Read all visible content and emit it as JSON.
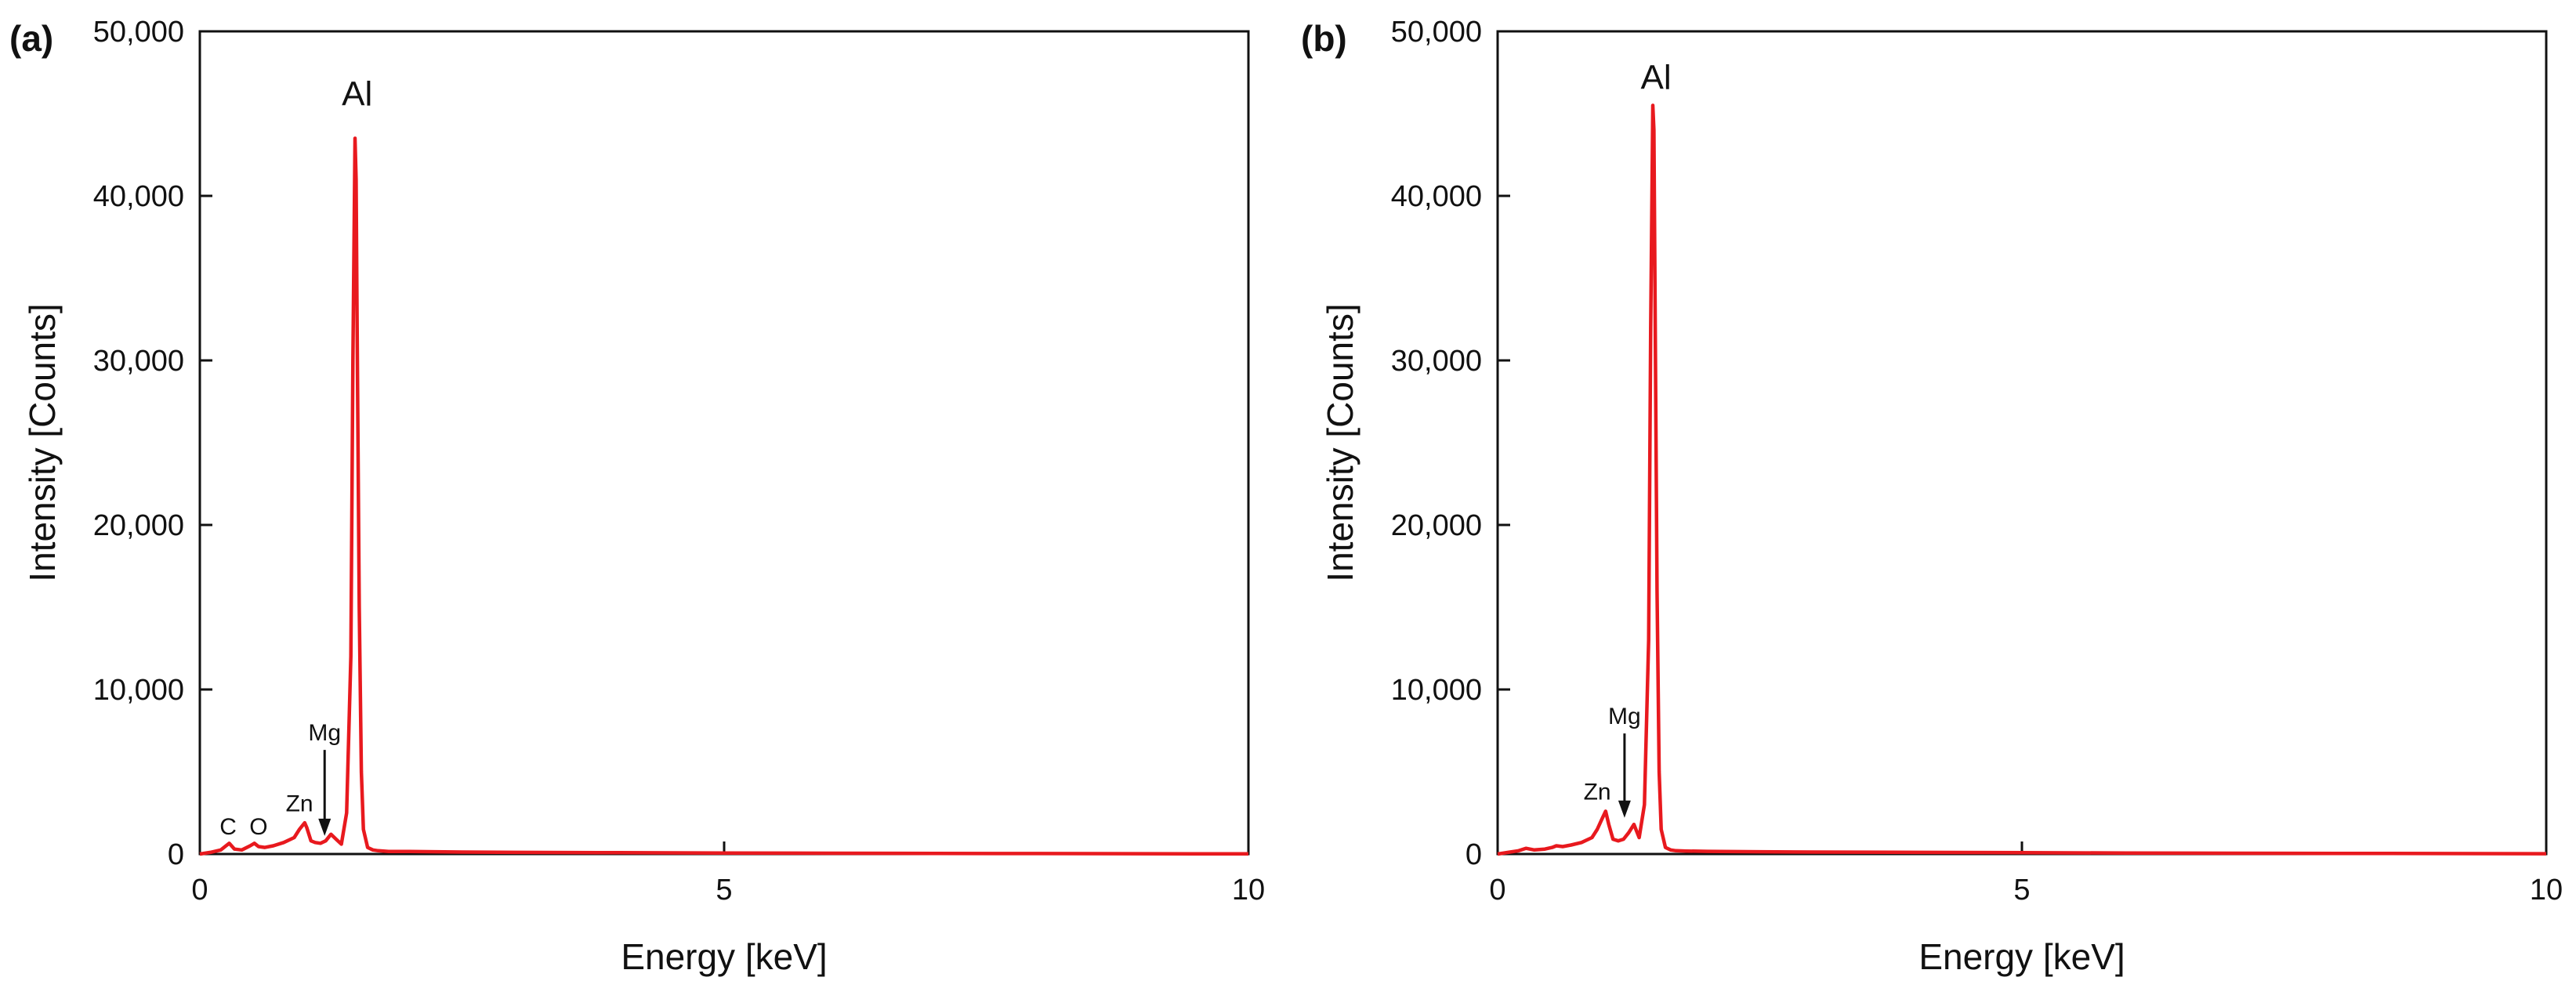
{
  "chart_data": [
    {
      "type": "line",
      "panel_label": "(a)",
      "xlabel": "Energy [keV]",
      "ylabel": "Intensity [Counts]",
      "xlim": [
        0,
        10
      ],
      "ylim": [
        0,
        50000
      ],
      "xticks": [
        0,
        5,
        10
      ],
      "xtick_labels": [
        "0",
        "5",
        "10"
      ],
      "yticks": [
        0,
        10000,
        20000,
        30000,
        40000,
        50000
      ],
      "ytick_labels": [
        "0",
        "10,000",
        "20,000",
        "30,000",
        "40,000",
        "50,000"
      ],
      "grid": false,
      "series": [
        {
          "name": "EDS spectrum (a)",
          "color": "#e8191e",
          "x": [
            0,
            0.1,
            0.2,
            0.25,
            0.28,
            0.33,
            0.4,
            0.48,
            0.52,
            0.56,
            0.62,
            0.7,
            0.8,
            0.9,
            0.95,
            1.0,
            1.02,
            1.06,
            1.1,
            1.15,
            1.2,
            1.25,
            1.3,
            1.35,
            1.4,
            1.44,
            1.46,
            1.48,
            1.49,
            1.5,
            1.52,
            1.54,
            1.56,
            1.6,
            1.65,
            1.7,
            1.8,
            2.0,
            2.5,
            3.0,
            4.0,
            5.0,
            6.0,
            7.0,
            8.0,
            9.0,
            10.0
          ],
          "y": [
            0,
            100,
            250,
            500,
            650,
            300,
            250,
            500,
            650,
            450,
            400,
            500,
            700,
            1000,
            1500,
            1900,
            1600,
            800,
            700,
            650,
            800,
            1200,
            900,
            600,
            2500,
            12000,
            30000,
            43500,
            41000,
            32000,
            15000,
            5000,
            1500,
            400,
            250,
            200,
            150,
            150,
            120,
            100,
            80,
            60,
            50,
            40,
            30,
            20,
            10
          ]
        }
      ],
      "annotations": [
        {
          "text": "Al",
          "x": 1.5,
          "y": 45500,
          "size": "large"
        },
        {
          "text": "C",
          "x": 0.27,
          "y": 1200,
          "size": "small"
        },
        {
          "text": "O",
          "x": 0.56,
          "y": 1200,
          "size": "small"
        },
        {
          "text": "Zn",
          "x": 0.95,
          "y": 2600,
          "size": "small"
        },
        {
          "text": "Mg",
          "x": 1.19,
          "y": 6900,
          "size": "small",
          "arrow_to_y": 1100
        }
      ]
    },
    {
      "type": "line",
      "panel_label": "(b)",
      "xlabel": "Energy [keV]",
      "ylabel": "Intensity [Counts]",
      "xlim": [
        0,
        10
      ],
      "ylim": [
        0,
        50000
      ],
      "xticks": [
        0,
        5,
        10
      ],
      "xtick_labels": [
        "0",
        "5",
        "10"
      ],
      "yticks": [
        0,
        10000,
        20000,
        30000,
        40000,
        50000
      ],
      "ytick_labels": [
        "0",
        "10,000",
        "20,000",
        "30,000",
        "40,000",
        "50,000"
      ],
      "grid": false,
      "series": [
        {
          "name": "EDS spectrum (b)",
          "color": "#e8191e",
          "x": [
            0,
            0.1,
            0.2,
            0.27,
            0.35,
            0.45,
            0.52,
            0.56,
            0.62,
            0.7,
            0.8,
            0.9,
            0.95,
            1.0,
            1.03,
            1.06,
            1.1,
            1.15,
            1.2,
            1.25,
            1.3,
            1.35,
            1.4,
            1.44,
            1.46,
            1.48,
            1.49,
            1.5,
            1.52,
            1.54,
            1.56,
            1.6,
            1.65,
            1.7,
            1.8,
            2.0,
            2.5,
            3.0,
            4.0,
            5.0,
            6.0,
            7.0,
            8.0,
            9.0,
            10.0
          ],
          "y": [
            0,
            100,
            200,
            350,
            250,
            300,
            400,
            500,
            450,
            550,
            700,
            1000,
            1500,
            2200,
            2600,
            1800,
            900,
            800,
            900,
            1300,
            1800,
            1000,
            3000,
            13000,
            32000,
            45500,
            44000,
            35000,
            16000,
            5000,
            1500,
            400,
            250,
            200,
            180,
            160,
            140,
            120,
            100,
            80,
            60,
            50,
            40,
            30,
            20
          ]
        }
      ],
      "annotations": [
        {
          "text": "Al",
          "x": 1.51,
          "y": 46500,
          "size": "large"
        },
        {
          "text": "Zn",
          "x": 0.95,
          "y": 3300,
          "size": "small"
        },
        {
          "text": "Mg",
          "x": 1.21,
          "y": 7900,
          "size": "small",
          "arrow_to_y": 2200
        }
      ]
    }
  ]
}
